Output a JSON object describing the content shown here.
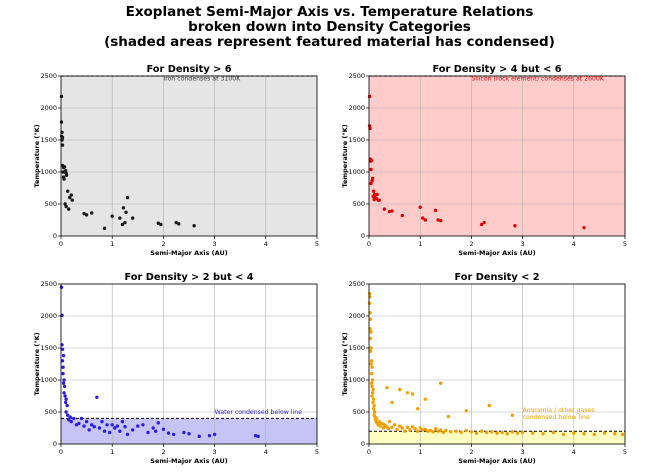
{
  "figure": {
    "title_lines": [
      "Exoplanet Semi-Major Axis vs. Temperature Relations",
      "broken down into Density Categories",
      "(shaded areas represent featured material has condensed)"
    ]
  },
  "chart_data": [
    {
      "type": "scatter",
      "title": "For Density > 6",
      "xlabel": "Semi-Major Axis (AU)",
      "ylabel": "Temperature (°K)",
      "xlim": [
        0,
        5
      ],
      "ylim": [
        0,
        2500
      ],
      "xticks": [
        0,
        1,
        2,
        3,
        4,
        5
      ],
      "yticks": [
        0,
        500,
        1000,
        1500,
        2000,
        2500
      ],
      "grid": true,
      "point_color": "#1a1a1a",
      "shade_color": "#e5e5e5",
      "shade_range": [
        0,
        2500
      ],
      "threshold": 2500,
      "annotation": "Iron condenses at 3100K",
      "annotation_x": 2.0,
      "annotation_y": 2430,
      "annotation_color": "#333333",
      "x": [
        0.01,
        0.01,
        0.01,
        0.02,
        0.02,
        0.03,
        0.03,
        0.03,
        0.04,
        0.05,
        0.05,
        0.06,
        0.07,
        0.08,
        0.09,
        0.1,
        0.1,
        0.11,
        0.13,
        0.15,
        0.17,
        0.2,
        0.22,
        0.45,
        0.5,
        0.6,
        0.85,
        1.0,
        1.15,
        1.2,
        1.22,
        1.25,
        1.27,
        1.3,
        1.4,
        1.9,
        1.95,
        2.25,
        2.3,
        2.6
      ],
      "y": [
        2180,
        1780,
        1560,
        1500,
        1620,
        1540,
        1420,
        1100,
        1000,
        1070,
        920,
        890,
        1080,
        500,
        1020,
        980,
        460,
        950,
        700,
        420,
        600,
        640,
        560,
        350,
        330,
        360,
        120,
        310,
        280,
        180,
        440,
        210,
        370,
        600,
        280,
        200,
        180,
        210,
        190,
        160
      ]
    },
    {
      "type": "scatter",
      "title": "For Density > 4 but < 6",
      "xlabel": "Semi-Major Axis (AU)",
      "ylabel": "Temperature (°K)",
      "xlim": [
        0,
        5
      ],
      "ylim": [
        0,
        2500
      ],
      "xticks": [
        0,
        1,
        2,
        3,
        4,
        5
      ],
      "yticks": [
        0,
        500,
        1000,
        1500,
        2000,
        2500
      ],
      "grid": true,
      "point_color": "#e00000",
      "shade_color": "#ffcccc",
      "shade_range": [
        0,
        2500
      ],
      "threshold": 2500,
      "annotation": "Silicon (rock element) condenses at 2600K",
      "annotation_x": 2.0,
      "annotation_y": 2430,
      "annotation_color": "#e00000",
      "x": [
        0.01,
        0.01,
        0.02,
        0.03,
        0.03,
        0.04,
        0.04,
        0.05,
        0.06,
        0.07,
        0.08,
        0.09,
        0.1,
        0.11,
        0.12,
        0.14,
        0.16,
        0.18,
        0.2,
        0.3,
        0.4,
        0.45,
        0.65,
        1.0,
        1.05,
        1.1,
        1.3,
        1.35,
        1.4,
        2.2,
        2.25,
        2.85,
        4.2
      ],
      "y": [
        2180,
        1720,
        1680,
        1200,
        1170,
        1040,
        820,
        1180,
        860,
        900,
        620,
        700,
        570,
        650,
        600,
        590,
        650,
        560,
        560,
        420,
        380,
        390,
        320,
        450,
        280,
        250,
        400,
        250,
        240,
        180,
        210,
        160,
        130
      ]
    },
    {
      "type": "scatter",
      "title": "For Density > 2 but < 4",
      "xlabel": "Semi-Major Axis (AU)",
      "ylabel": "Temperature (°K)",
      "xlim": [
        0,
        5
      ],
      "ylim": [
        0,
        2500
      ],
      "xticks": [
        0,
        1,
        2,
        3,
        4,
        5
      ],
      "yticks": [
        0,
        500,
        1000,
        1500,
        2000,
        2500
      ],
      "grid": true,
      "point_color": "#2a1ee0",
      "shade_color": "#c6c3f5",
      "shade_range": [
        0,
        400
      ],
      "threshold": 400,
      "annotation": "Water condensed below line",
      "annotation_x": 3.0,
      "annotation_y": 470,
      "annotation_color": "#2a1ee0",
      "x": [
        0.01,
        0.02,
        0.02,
        0.03,
        0.03,
        0.04,
        0.04,
        0.05,
        0.05,
        0.06,
        0.06,
        0.07,
        0.08,
        0.09,
        0.1,
        0.1,
        0.12,
        0.13,
        0.15,
        0.18,
        0.2,
        0.25,
        0.3,
        0.35,
        0.4,
        0.45,
        0.5,
        0.55,
        0.6,
        0.65,
        0.7,
        0.75,
        0.8,
        0.85,
        0.9,
        0.95,
        1.0,
        1.05,
        1.1,
        1.15,
        1.2,
        1.25,
        1.3,
        1.4,
        1.5,
        1.6,
        1.7,
        1.8,
        1.85,
        1.9,
        2.0,
        2.1,
        2.2,
        2.4,
        2.5,
        2.7,
        2.9,
        3.0,
        3.8,
        3.85
      ],
      "y": [
        2450,
        2010,
        1550,
        1480,
        1300,
        1200,
        1100,
        1380,
        950,
        1000,
        800,
        900,
        750,
        650,
        700,
        500,
        600,
        450,
        380,
        420,
        350,
        400,
        300,
        320,
        400,
        280,
        350,
        220,
        300,
        270,
        730,
        250,
        350,
        200,
        300,
        180,
        300,
        250,
        280,
        200,
        350,
        270,
        150,
        220,
        280,
        300,
        180,
        250,
        200,
        330,
        230,
        170,
        150,
        180,
        160,
        120,
        130,
        150,
        130,
        120
      ]
    },
    {
      "type": "scatter",
      "title": "For Density < 2",
      "xlabel": "Semi-Major Axis (AU)",
      "ylabel": "Temperature (°K)",
      "xlim": [
        0,
        5
      ],
      "ylim": [
        0,
        2500
      ],
      "xticks": [
        0,
        1,
        2,
        3,
        4,
        5
      ],
      "yticks": [
        0,
        500,
        1000,
        1500,
        2000,
        2500
      ],
      "grid": true,
      "point_color": "#f2a000",
      "shade_color": "#ffffc2",
      "shade_range": [
        0,
        200
      ],
      "threshold": 200,
      "annotation": "Ammonia / other gases\ncondensed below line",
      "annotation_x": 3.0,
      "annotation_y": 500,
      "annotation_color": "#f2a000",
      "x": [
        0.01,
        0.01,
        0.02,
        0.02,
        0.02,
        0.03,
        0.03,
        0.03,
        0.04,
        0.04,
        0.04,
        0.05,
        0.05,
        0.05,
        0.06,
        0.06,
        0.06,
        0.07,
        0.07,
        0.08,
        0.08,
        0.09,
        0.09,
        0.1,
        0.1,
        0.11,
        0.12,
        0.13,
        0.14,
        0.15,
        0.16,
        0.18,
        0.2,
        0.22,
        0.25,
        0.28,
        0.3,
        0.33,
        0.35,
        0.38,
        0.4,
        0.45,
        0.5,
        0.55,
        0.6,
        0.65,
        0.7,
        0.75,
        0.8,
        0.85,
        0.9,
        0.95,
        1.0,
        1.05,
        1.1,
        1.15,
        1.2,
        1.25,
        1.3,
        1.35,
        1.4,
        1.45,
        1.5,
        1.6,
        1.7,
        1.8,
        1.9,
        2.0,
        2.1,
        2.2,
        2.3,
        2.4,
        2.5,
        2.6,
        2.7,
        2.8,
        2.9,
        3.0,
        3.2,
        3.4,
        3.6,
        3.8,
        4.0,
        4.2,
        4.4,
        4.6,
        4.8,
        4.95,
        0.35,
        0.6,
        0.75,
        0.85,
        1.1,
        1.4,
        1.9,
        2.35,
        2.8,
        0.45,
        0.95,
        1.55
      ],
      "y": [
        2350,
        2200,
        2300,
        2050,
        1800,
        1950,
        1650,
        1450,
        1750,
        1500,
        1250,
        1300,
        1100,
        950,
        1200,
        900,
        750,
        1000,
        800,
        850,
        650,
        700,
        550,
        600,
        450,
        500,
        420,
        380,
        350,
        400,
        330,
        300,
        350,
        280,
        320,
        250,
        300,
        280,
        270,
        240,
        350,
        260,
        300,
        230,
        280,
        250,
        200,
        260,
        220,
        270,
        240,
        200,
        250,
        220,
        230,
        200,
        210,
        190,
        240,
        200,
        220,
        180,
        210,
        190,
        200,
        180,
        210,
        190,
        170,
        200,
        180,
        190,
        170,
        180,
        160,
        190,
        170,
        180,
        170,
        160,
        180,
        150,
        170,
        160,
        150,
        170,
        160,
        150,
        880,
        850,
        800,
        780,
        700,
        950,
        520,
        600,
        450,
        650,
        550,
        430
      ]
    }
  ]
}
